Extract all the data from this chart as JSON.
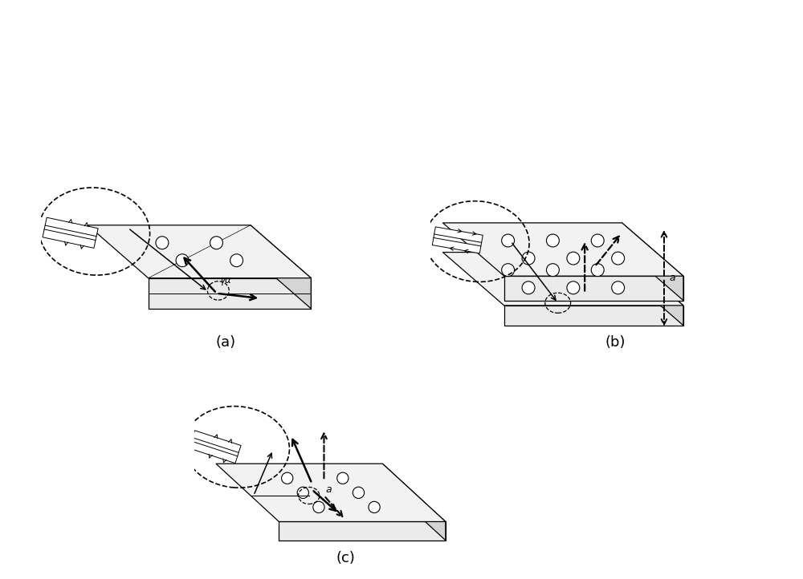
{
  "bg_color": "#ffffff",
  "lc": "#000000",
  "fig_labels": [
    "(a)",
    "(b)",
    "(c)"
  ],
  "label_fontsize": 13,
  "panel_a": {
    "block_color_top": "#f0f0f0",
    "block_color_side": "#d8d8d8",
    "block_color_front": "#e8e8e8"
  }
}
